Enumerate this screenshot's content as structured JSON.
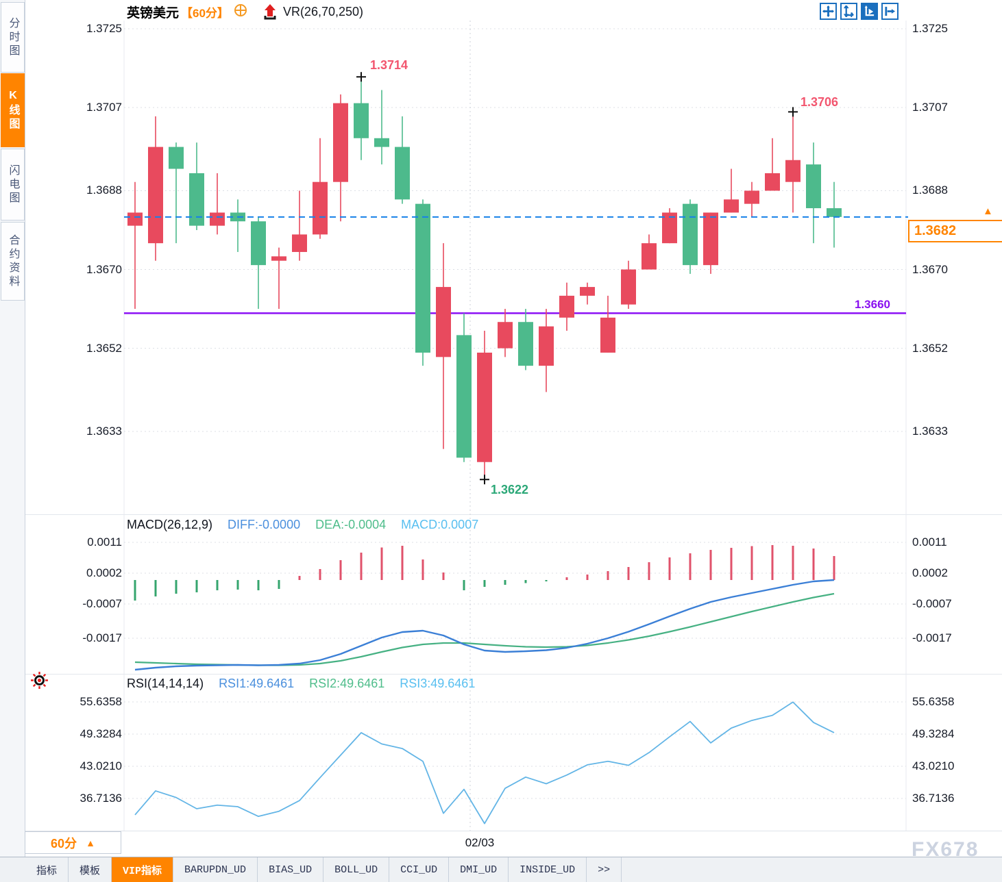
{
  "header": {
    "symbol": "英镑美元",
    "timeframe_badge": "【60分】",
    "indicator_label": "VR(26,70,250)"
  },
  "sidebar": {
    "tabs": [
      {
        "label": "分时图",
        "active": false
      },
      {
        "label": "K线图",
        "active": true
      },
      {
        "label": "闪电图",
        "active": false
      },
      {
        "label": "合约资料",
        "active": false
      }
    ]
  },
  "price_panel": {
    "axis_labels": [
      "1.3725",
      "1.3707",
      "1.3688",
      "1.3670",
      "1.3652",
      "1.3633"
    ],
    "annotations": {
      "high": "1.3714",
      "swing_high": "1.3706",
      "low": "1.3622",
      "support": "1.3660",
      "current_price": "1.3682",
      "current_price_marker": "▲"
    }
  },
  "macd_panel": {
    "title": "MACD(26,12,9)",
    "diff_label": "DIFF:-0.0000",
    "dea_label": "DEA:-0.0004",
    "macd_label": "MACD:0.0007",
    "axis_labels": [
      "0.0011",
      "0.0002",
      "-0.0007",
      "-0.0017"
    ]
  },
  "rsi_panel": {
    "title": "RSI(14,14,14)",
    "rsi1_label": "RSI1:49.6461",
    "rsi2_label": "RSI2:49.6461",
    "rsi3_label": "RSI3:49.6461",
    "axis_labels": [
      "55.6358",
      "49.3284",
      "43.0210",
      "36.7136"
    ]
  },
  "bottom_bar": {
    "timeframe_button": "60分",
    "timeframe_arrow": "▲",
    "date_label": "02/03",
    "watermark": "FX678"
  },
  "indicator_tabs": [
    {
      "label": "指标",
      "active": false
    },
    {
      "label": "模板",
      "active": false
    },
    {
      "label": "VIP指标",
      "active": true
    },
    {
      "label": "BARUPDN_UD",
      "active": false
    },
    {
      "label": "BIAS_UD",
      "active": false
    },
    {
      "label": "BOLL_UD",
      "active": false
    },
    {
      "label": "CCI_UD",
      "active": false
    },
    {
      "label": "DMI_UD",
      "active": false
    },
    {
      "label": "INSIDE_UD",
      "active": false
    },
    {
      "label": ">>",
      "active": false
    }
  ],
  "colors": {
    "up": "#e84a5e",
    "down": "#4dba8c",
    "macd_bar_up": "#e0526b",
    "macd_bar_down": "#35a56e",
    "accent_orange": "#ff8400",
    "current_price_line": "#1581e8",
    "support_line": "#8b10f5",
    "diff_line": "#3b7fd6",
    "dea_line": "#46b183",
    "rsi_line": "#63b5e6",
    "grid": "#dcdfe5",
    "annotation_pink": "#f2566f",
    "annotation_green": "#2ca878"
  },
  "chart_data": [
    {
      "type": "candlestick",
      "title": "英镑美元 60分",
      "overlay_indicator": "VR(26,70,250)",
      "y_axis_ticks": [
        1.3725,
        1.3707,
        1.3688,
        1.367,
        1.3652,
        1.3633
      ],
      "ylim": [
        1.3622,
        1.3725
      ],
      "current_price": 1.3682,
      "support_line": 1.366,
      "annotations": [
        {
          "price": 1.3714,
          "candle_index": 11,
          "kind": "high"
        },
        {
          "price": 1.3706,
          "candle_index": 32,
          "kind": "swing_high"
        },
        {
          "price": 1.3622,
          "candle_index": 17,
          "kind": "low"
        }
      ],
      "date_tick": {
        "label": "02/03",
        "candle_index": 16
      },
      "candles_ohlc": [
        [
          1.368,
          1.369,
          1.3661,
          1.3683
        ],
        [
          1.3676,
          1.3705,
          1.3672,
          1.3698
        ],
        [
          1.3698,
          1.3699,
          1.3676,
          1.3693
        ],
        [
          1.3692,
          1.3699,
          1.3679,
          1.368
        ],
        [
          1.368,
          1.3692,
          1.3678,
          1.3683
        ],
        [
          1.3683,
          1.3686,
          1.3674,
          1.3681
        ],
        [
          1.3681,
          1.3682,
          1.3661,
          1.3671
        ],
        [
          1.3672,
          1.3675,
          1.3661,
          1.3673
        ],
        [
          1.3674,
          1.3688,
          1.3672,
          1.3678
        ],
        [
          1.3678,
          1.37,
          1.3677,
          1.369
        ],
        [
          1.369,
          1.371,
          1.3681,
          1.3708
        ],
        [
          1.3708,
          1.3714,
          1.3695,
          1.37
        ],
        [
          1.37,
          1.3711,
          1.3694,
          1.3698
        ],
        [
          1.3698,
          1.3705,
          1.3685,
          1.3686
        ],
        [
          1.3685,
          1.3686,
          1.3648,
          1.3651
        ],
        [
          1.365,
          1.3676,
          1.3629,
          1.3666
        ],
        [
          1.3655,
          1.366,
          1.3626,
          1.3627
        ],
        [
          1.3626,
          1.3656,
          1.3622,
          1.3651
        ],
        [
          1.3652,
          1.3661,
          1.365,
          1.3658
        ],
        [
          1.3658,
          1.3661,
          1.3647,
          1.3648
        ],
        [
          1.3648,
          1.3661,
          1.3642,
          1.3657
        ],
        [
          1.3659,
          1.3667,
          1.3656,
          1.3664
        ],
        [
          1.3664,
          1.3667,
          1.3662,
          1.3666
        ],
        [
          1.3651,
          1.3664,
          1.3651,
          1.3659
        ],
        [
          1.3662,
          1.3672,
          1.3661,
          1.367
        ],
        [
          1.367,
          1.3678,
          1.367,
          1.3676
        ],
        [
          1.3676,
          1.3684,
          1.3676,
          1.3683
        ],
        [
          1.3685,
          1.3686,
          1.3669,
          1.3671
        ],
        [
          1.3671,
          1.3683,
          1.3669,
          1.3683
        ],
        [
          1.3683,
          1.3693,
          1.3683,
          1.3686
        ],
        [
          1.3685,
          1.369,
          1.3682,
          1.3688
        ],
        [
          1.3688,
          1.37,
          1.3688,
          1.3692
        ],
        [
          1.369,
          1.3706,
          1.3683,
          1.3695
        ],
        [
          1.3694,
          1.3699,
          1.3676,
          1.3684
        ],
        [
          1.3684,
          1.369,
          1.3675,
          1.3682
        ]
      ]
    },
    {
      "type": "bar",
      "name": "MACD(26,12,9)",
      "y_axis_ticks": [
        0.0011,
        0.0002,
        -0.0007,
        -0.0017
      ],
      "last_values": {
        "DIFF": -0.0,
        "DEA": -0.0004,
        "MACD": 0.0007
      },
      "histogram": [
        -0.0006,
        -0.00048,
        -0.0004,
        -0.00036,
        -0.0003,
        -0.00028,
        -0.0003,
        -0.00026,
        0.00012,
        0.00032,
        0.00058,
        0.0008,
        0.00095,
        0.001,
        0.0006,
        0.00022,
        -0.0003,
        -0.0002,
        -0.00014,
        -9e-05,
        -4e-05,
        8e-05,
        0.00016,
        0.00026,
        0.00038,
        0.00052,
        0.00066,
        0.00078,
        0.00088,
        0.00094,
        0.00099,
        0.00102,
        0.001,
        0.00092,
        0.0007
      ],
      "diff_line": [
        -0.00262,
        -0.00256,
        -0.00252,
        -0.0025,
        -0.00249,
        -0.00248,
        -0.00249,
        -0.00248,
        -0.00244,
        -0.00234,
        -0.00216,
        -0.00192,
        -0.00168,
        -0.00152,
        -0.00148,
        -0.00162,
        -0.00188,
        -0.00206,
        -0.0021,
        -0.00208,
        -0.00205,
        -0.00198,
        -0.00186,
        -0.0017,
        -0.00151,
        -0.00129,
        -0.00106,
        -0.00084,
        -0.00064,
        -0.0005,
        -0.00038,
        -0.00026,
        -0.00014,
        -4e-05,
        0.0
      ],
      "dea_line": [
        -0.0024,
        -0.00242,
        -0.00244,
        -0.00246,
        -0.00247,
        -0.00248,
        -0.00249,
        -0.00249,
        -0.00248,
        -0.00244,
        -0.00236,
        -0.00224,
        -0.0021,
        -0.00197,
        -0.00188,
        -0.00184,
        -0.00184,
        -0.00188,
        -0.00192,
        -0.00195,
        -0.00196,
        -0.00195,
        -0.00191,
        -0.00184,
        -0.00175,
        -0.00164,
        -0.00151,
        -0.00137,
        -0.00122,
        -0.00107,
        -0.00092,
        -0.00078,
        -0.00064,
        -0.00051,
        -0.0004
      ]
    },
    {
      "type": "line",
      "name": "RSI(14,14,14)",
      "y_axis_ticks": [
        55.6358,
        49.3284,
        43.021,
        36.7136
      ],
      "last_values": {
        "RSI1": 49.6461,
        "RSI2": 49.6461,
        "RSI3": 49.6461
      },
      "rsi": [
        33.5,
        38.2,
        36.9,
        34.7,
        35.4,
        35.1,
        33.2,
        34.2,
        36.3,
        40.8,
        45.2,
        49.6,
        47.4,
        46.5,
        44.0,
        33.8,
        38.5,
        31.8,
        38.7,
        40.9,
        39.6,
        41.3,
        43.3,
        44.0,
        43.2,
        45.7,
        48.8,
        51.8,
        47.6,
        50.5,
        52.0,
        53.0,
        55.6,
        51.6,
        49.6
      ]
    }
  ]
}
